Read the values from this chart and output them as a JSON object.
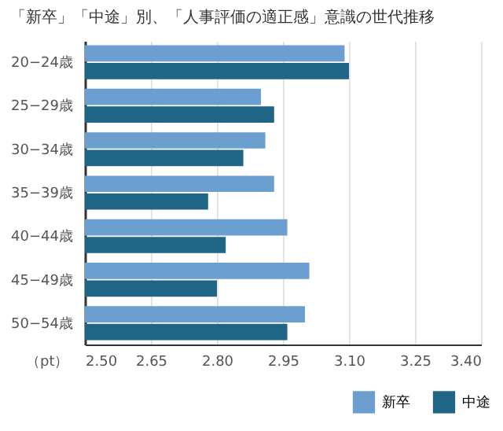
{
  "chart_data": {
    "type": "bar",
    "orientation": "horizontal",
    "title": "「新卒」「中途」別、「人事評価の適正感」意識の世代推移",
    "xlabel": "（pt）",
    "categories": [
      "20−24歳",
      "25−29歳",
      "30−34歳",
      "35−39歳",
      "40−44歳",
      "45−49歳",
      "50−54歳"
    ],
    "series": [
      {
        "name": "新卒",
        "color": "#6a9fcf",
        "values": [
          3.09,
          2.9,
          2.91,
          2.93,
          2.96,
          3.01,
          3.0
        ]
      },
      {
        "name": "中途",
        "color": "#1f6586",
        "values": [
          3.1,
          2.93,
          2.86,
          2.78,
          2.82,
          2.8,
          2.96
        ]
      }
    ],
    "xlim": [
      2.5,
      3.4
    ],
    "xticks": [
      {
        "value": 2.5,
        "label": "2.50"
      },
      {
        "value": 2.65,
        "label": "2.65"
      },
      {
        "value": 2.8,
        "label": "2.80"
      },
      {
        "value": 2.95,
        "label": "2.95"
      },
      {
        "value": 3.1,
        "label": "3.10"
      },
      {
        "value": 3.25,
        "label": "3.25"
      },
      {
        "value": 3.4,
        "label": "3.40"
      }
    ],
    "grid": "x",
    "legend": "bottom right"
  }
}
